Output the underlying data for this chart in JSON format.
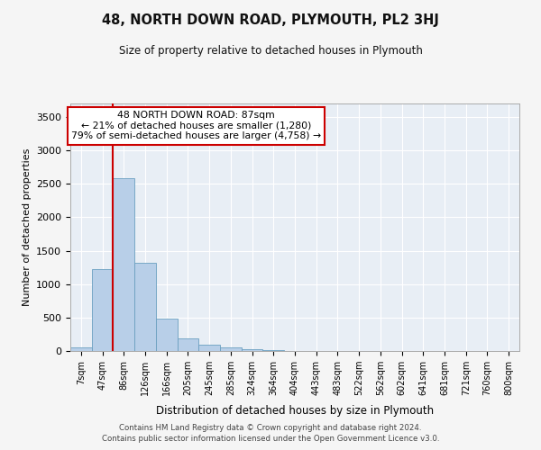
{
  "title": "48, NORTH DOWN ROAD, PLYMOUTH, PL2 3HJ",
  "subtitle": "Size of property relative to detached houses in Plymouth",
  "xlabel": "Distribution of detached houses by size in Plymouth",
  "ylabel": "Number of detached properties",
  "bar_labels": [
    "7sqm",
    "47sqm",
    "86sqm",
    "126sqm",
    "166sqm",
    "205sqm",
    "245sqm",
    "285sqm",
    "324sqm",
    "364sqm",
    "404sqm",
    "443sqm",
    "483sqm",
    "522sqm",
    "562sqm",
    "602sqm",
    "641sqm",
    "681sqm",
    "721sqm",
    "760sqm",
    "800sqm"
  ],
  "bar_values": [
    50,
    1220,
    2580,
    1320,
    490,
    185,
    100,
    55,
    30,
    10,
    0,
    0,
    0,
    0,
    0,
    0,
    0,
    0,
    0,
    0,
    0
  ],
  "bar_color": "#b8cfe8",
  "bar_edge_color": "#6a9fc0",
  "red_line_color": "#cc0000",
  "annotation_line1": "48 NORTH DOWN ROAD: 87sqm",
  "annotation_line2": "← 21% of detached houses are smaller (1,280)",
  "annotation_line3": "79% of semi-detached houses are larger (4,758) →",
  "annotation_box_color": "#ffffff",
  "annotation_box_edge_color": "#cc0000",
  "ylim": [
    0,
    3700
  ],
  "yticks": [
    0,
    500,
    1000,
    1500,
    2000,
    2500,
    3000,
    3500
  ],
  "background_color": "#e8eef5",
  "grid_color": "#ffffff",
  "fig_facecolor": "#f5f5f5",
  "footer_line1": "Contains HM Land Registry data © Crown copyright and database right 2024.",
  "footer_line2": "Contains public sector information licensed under the Open Government Licence v3.0."
}
